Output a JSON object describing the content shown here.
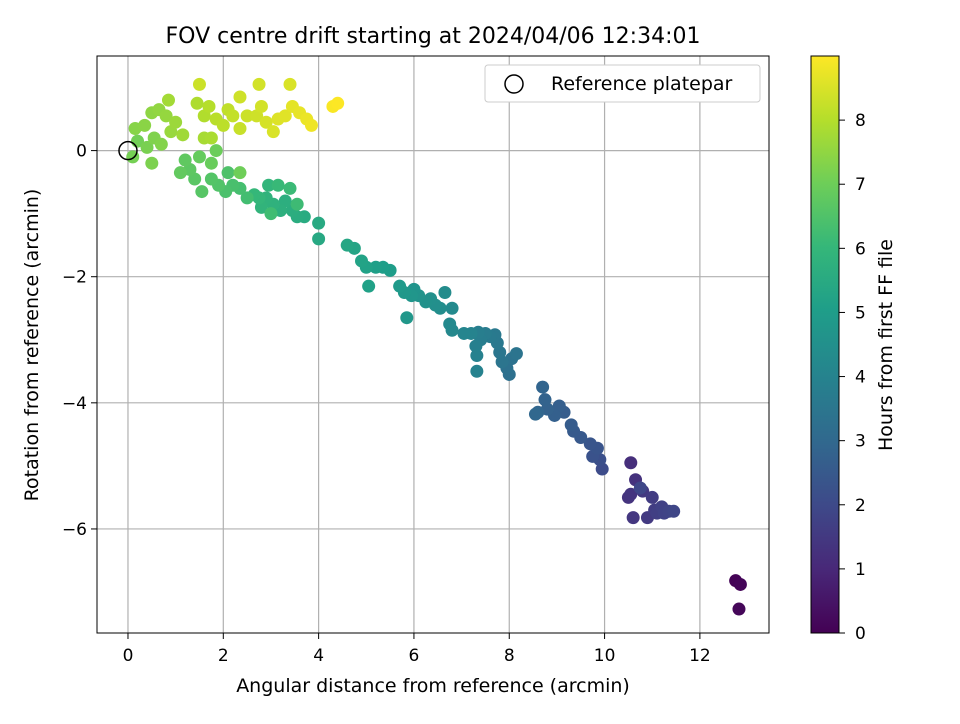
{
  "chart_data": {
    "type": "scatter",
    "title": "FOV centre drift starting at 2024/04/06 12:34:01",
    "xlabel": "Angular distance from reference (arcmin)",
    "ylabel": "Rotation from reference (arcmin)",
    "xlim": [
      -0.65,
      13.45
    ],
    "ylim": [
      -7.65,
      1.5
    ],
    "xticks": [
      0,
      2,
      4,
      6,
      8,
      10,
      12
    ],
    "yticks": [
      0,
      -2,
      -4,
      -6
    ],
    "grid": true,
    "legend": {
      "placement": "top-right",
      "entries": [
        "Reference platepar"
      ]
    },
    "reference_point": {
      "x": 0,
      "y": 0
    },
    "colorbar": {
      "label": "Hours from first FF file",
      "range": [
        0,
        9.0
      ],
      "ticks": [
        0,
        1,
        2,
        3,
        4,
        5,
        6,
        7,
        8
      ],
      "colormap": "viridis"
    },
    "series": [
      {
        "points": [
          [
            12.75,
            -6.82,
            0.05
          ],
          [
            12.85,
            -6.88,
            0.1
          ],
          [
            12.82,
            -7.27,
            0.15
          ],
          [
            10.55,
            -4.95,
            1.2
          ],
          [
            10.65,
            -5.22,
            1.3
          ],
          [
            10.5,
            -5.5,
            1.35
          ],
          [
            10.55,
            -5.45,
            1.4
          ],
          [
            10.6,
            -5.82,
            1.45
          ],
          [
            10.8,
            -5.4,
            1.5
          ],
          [
            10.9,
            -5.82,
            1.55
          ],
          [
            11.0,
            -5.5,
            1.6
          ],
          [
            11.05,
            -5.7,
            1.65
          ],
          [
            11.1,
            -5.75,
            1.7
          ],
          [
            11.2,
            -5.65,
            1.75
          ],
          [
            11.25,
            -5.75,
            1.8
          ],
          [
            11.35,
            -5.72,
            1.85
          ],
          [
            11.45,
            -5.72,
            1.9
          ],
          [
            10.75,
            -5.35,
            1.95
          ],
          [
            9.95,
            -5.05,
            2.1
          ],
          [
            9.9,
            -4.9,
            2.2
          ],
          [
            9.75,
            -4.85,
            2.3
          ],
          [
            9.85,
            -4.72,
            2.35
          ],
          [
            9.7,
            -4.65,
            2.4
          ],
          [
            9.5,
            -4.55,
            2.5
          ],
          [
            9.35,
            -4.45,
            2.55
          ],
          [
            9.3,
            -4.35,
            2.6
          ],
          [
            9.15,
            -4.15,
            2.65
          ],
          [
            9.05,
            -4.05,
            2.7
          ],
          [
            8.95,
            -4.2,
            2.75
          ],
          [
            8.8,
            -4.1,
            2.8
          ],
          [
            8.75,
            -3.95,
            2.85
          ],
          [
            8.7,
            -3.75,
            2.9
          ],
          [
            8.6,
            -4.15,
            2.95
          ],
          [
            8.55,
            -4.18,
            3.0
          ],
          [
            8.0,
            -3.55,
            3.3
          ],
          [
            7.95,
            -3.45,
            3.35
          ],
          [
            8.05,
            -3.3,
            3.4
          ],
          [
            8.15,
            -3.22,
            3.45
          ],
          [
            7.85,
            -3.35,
            3.5
          ],
          [
            7.8,
            -3.2,
            3.55
          ],
          [
            7.75,
            -3.05,
            3.6
          ],
          [
            7.7,
            -2.92,
            3.65
          ],
          [
            7.6,
            -2.95,
            3.7
          ],
          [
            7.5,
            -2.9,
            3.75
          ],
          [
            7.4,
            -3.0,
            3.8
          ],
          [
            7.35,
            -2.88,
            3.85
          ],
          [
            7.3,
            -3.1,
            3.9
          ],
          [
            7.32,
            -3.25,
            3.95
          ],
          [
            7.32,
            -3.5,
            4.0
          ],
          [
            7.2,
            -2.9,
            4.05
          ],
          [
            7.05,
            -2.9,
            4.1
          ],
          [
            6.8,
            -2.85,
            4.2
          ],
          [
            6.75,
            -2.75,
            4.25
          ],
          [
            6.8,
            -2.5,
            4.3
          ],
          [
            6.65,
            -2.25,
            4.35
          ],
          [
            6.55,
            -2.5,
            4.4
          ],
          [
            6.45,
            -2.45,
            4.45
          ],
          [
            6.35,
            -2.35,
            4.5
          ],
          [
            6.25,
            -2.4,
            4.55
          ],
          [
            6.1,
            -2.3,
            4.6
          ],
          [
            6.0,
            -2.2,
            4.65
          ],
          [
            5.95,
            -2.3,
            4.7
          ],
          [
            5.85,
            -2.65,
            4.75
          ],
          [
            5.8,
            -2.25,
            4.8
          ],
          [
            5.7,
            -2.15,
            4.85
          ],
          [
            5.5,
            -1.9,
            4.95
          ],
          [
            5.35,
            -1.85,
            5.0
          ],
          [
            5.2,
            -1.85,
            5.05
          ],
          [
            5.05,
            -2.15,
            5.1
          ],
          [
            5.0,
            -1.85,
            5.15
          ],
          [
            4.9,
            -1.75,
            5.2
          ],
          [
            4.75,
            -1.55,
            5.25
          ],
          [
            4.6,
            -1.5,
            5.3
          ],
          [
            4.0,
            -1.4,
            5.4
          ],
          [
            4.0,
            -1.15,
            5.45
          ],
          [
            3.7,
            -1.05,
            5.5
          ],
          [
            3.55,
            -1.05,
            5.55
          ],
          [
            3.45,
            -0.95,
            5.6
          ],
          [
            3.3,
            -0.8,
            5.65
          ],
          [
            3.2,
            -0.95,
            5.7
          ],
          [
            3.05,
            -0.85,
            5.75
          ],
          [
            2.9,
            -0.75,
            5.8
          ],
          [
            2.8,
            -0.9,
            5.85
          ],
          [
            2.95,
            -0.55,
            5.9
          ],
          [
            2.75,
            -0.75,
            5.95
          ],
          [
            2.65,
            -0.7,
            6.0
          ],
          [
            3.15,
            -0.55,
            6.05
          ],
          [
            3.4,
            -0.6,
            6.1
          ],
          [
            3.55,
            -0.85,
            6.15
          ],
          [
            3.0,
            -1.0,
            6.2
          ],
          [
            2.5,
            -0.75,
            6.25
          ],
          [
            2.35,
            -0.6,
            6.3
          ],
          [
            2.2,
            -0.55,
            6.35
          ],
          [
            2.05,
            -0.65,
            6.4
          ],
          [
            2.1,
            -0.35,
            6.45
          ],
          [
            1.9,
            -0.55,
            6.5
          ],
          [
            1.75,
            -0.45,
            6.55
          ],
          [
            1.55,
            -0.65,
            6.6
          ],
          [
            1.4,
            -0.45,
            6.65
          ],
          [
            1.3,
            -0.3,
            6.7
          ],
          [
            1.2,
            -0.15,
            6.75
          ],
          [
            1.1,
            -0.35,
            6.8
          ],
          [
            1.5,
            -0.1,
            6.85
          ],
          [
            1.75,
            -0.2,
            6.9
          ],
          [
            1.85,
            0.0,
            6.95
          ],
          [
            2.35,
            -0.35,
            7.0
          ],
          [
            0.2,
            0.15,
            7.05
          ],
          [
            0.1,
            -0.1,
            7.1
          ],
          [
            0.4,
            0.05,
            7.15
          ],
          [
            0.5,
            -0.2,
            7.2
          ],
          [
            0.55,
            0.2,
            7.25
          ],
          [
            0.7,
            0.1,
            7.3
          ],
          [
            0.15,
            0.35,
            7.35
          ],
          [
            0.35,
            0.4,
            7.4
          ],
          [
            0.5,
            0.6,
            7.45
          ],
          [
            0.65,
            0.65,
            7.5
          ],
          [
            0.8,
            0.55,
            7.55
          ],
          [
            0.9,
            0.3,
            7.6
          ],
          [
            1.0,
            0.45,
            7.65
          ],
          [
            1.15,
            0.25,
            7.7
          ],
          [
            0.85,
            0.8,
            7.75
          ],
          [
            1.6,
            0.2,
            7.8
          ],
          [
            1.75,
            0.2,
            7.85
          ],
          [
            1.45,
            0.75,
            7.9
          ],
          [
            1.6,
            0.55,
            7.95
          ],
          [
            1.7,
            0.7,
            8.0
          ],
          [
            1.85,
            0.5,
            8.05
          ],
          [
            2.0,
            0.4,
            8.1
          ],
          [
            2.1,
            0.65,
            8.15
          ],
          [
            2.2,
            0.55,
            8.2
          ],
          [
            2.35,
            0.35,
            8.25
          ],
          [
            2.5,
            0.55,
            8.3
          ],
          [
            2.7,
            0.55,
            8.35
          ],
          [
            2.8,
            0.7,
            8.4
          ],
          [
            2.9,
            0.45,
            8.45
          ],
          [
            3.05,
            0.3,
            8.5
          ],
          [
            3.15,
            0.5,
            8.55
          ],
          [
            3.3,
            0.55,
            8.6
          ],
          [
            3.45,
            0.7,
            8.65
          ],
          [
            3.6,
            0.6,
            8.7
          ],
          [
            3.75,
            0.5,
            8.75
          ],
          [
            3.85,
            0.4,
            8.8
          ],
          [
            3.4,
            1.05,
            8.5
          ],
          [
            2.75,
            1.05,
            8.4
          ],
          [
            1.5,
            1.05,
            8.3
          ],
          [
            2.35,
            0.85,
            8.35
          ],
          [
            4.3,
            0.7,
            8.95
          ],
          [
            4.4,
            0.75,
            8.98
          ]
        ]
      }
    ]
  }
}
